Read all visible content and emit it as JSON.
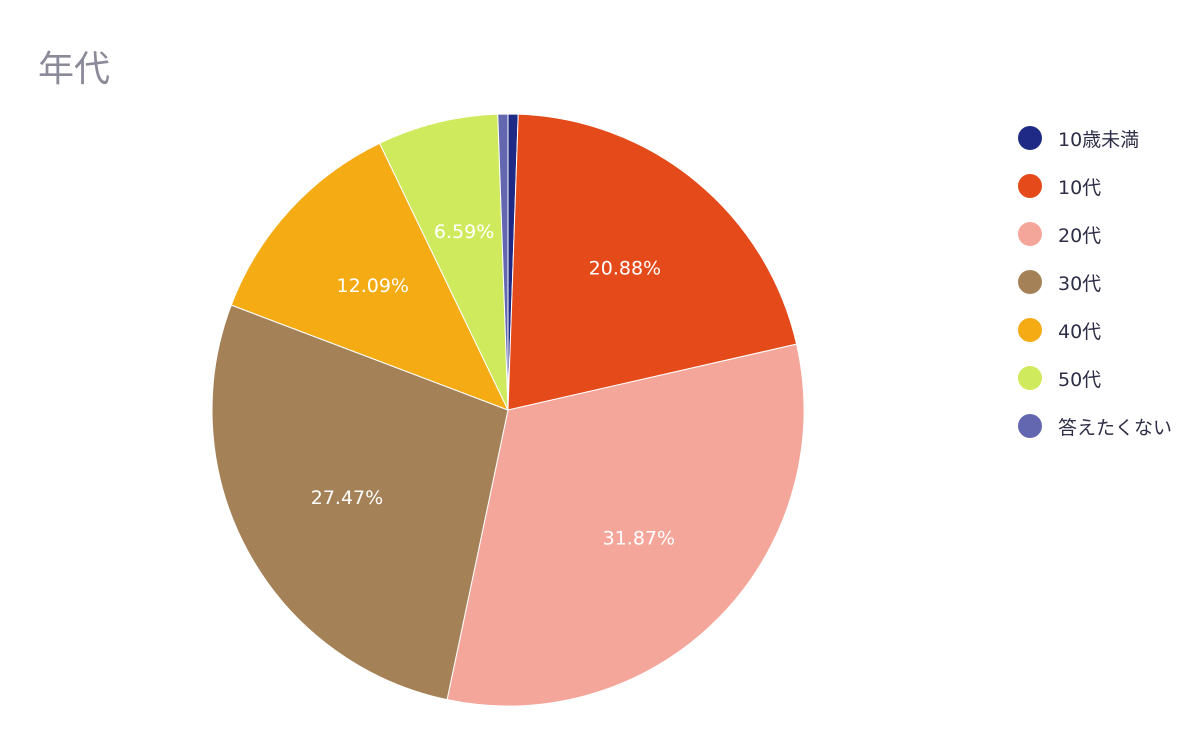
{
  "chart_data": {
    "type": "pie",
    "title": "年代",
    "start": "top-clockwise",
    "legend_position": "right",
    "slices": [
      {
        "name": "10歳未満",
        "value": 0.55,
        "color": "#1f2a86",
        "label": ""
      },
      {
        "name": "10代",
        "value": 20.88,
        "color": "#e44a1a",
        "label": "20.88%"
      },
      {
        "name": "20代",
        "value": 31.87,
        "color": "#f5a69a",
        "label": "31.87%"
      },
      {
        "name": "30代",
        "value": 27.47,
        "color": "#a58157",
        "label": "27.47%"
      },
      {
        "name": "40代",
        "value": 12.09,
        "color": "#f4ab14",
        "label": "12.09%"
      },
      {
        "name": "50代",
        "value": 6.59,
        "color": "#d0ea5e",
        "label": "6.59%"
      },
      {
        "name": "答えたくない",
        "value": 0.55,
        "color": "#6367b0",
        "label": ""
      }
    ]
  }
}
